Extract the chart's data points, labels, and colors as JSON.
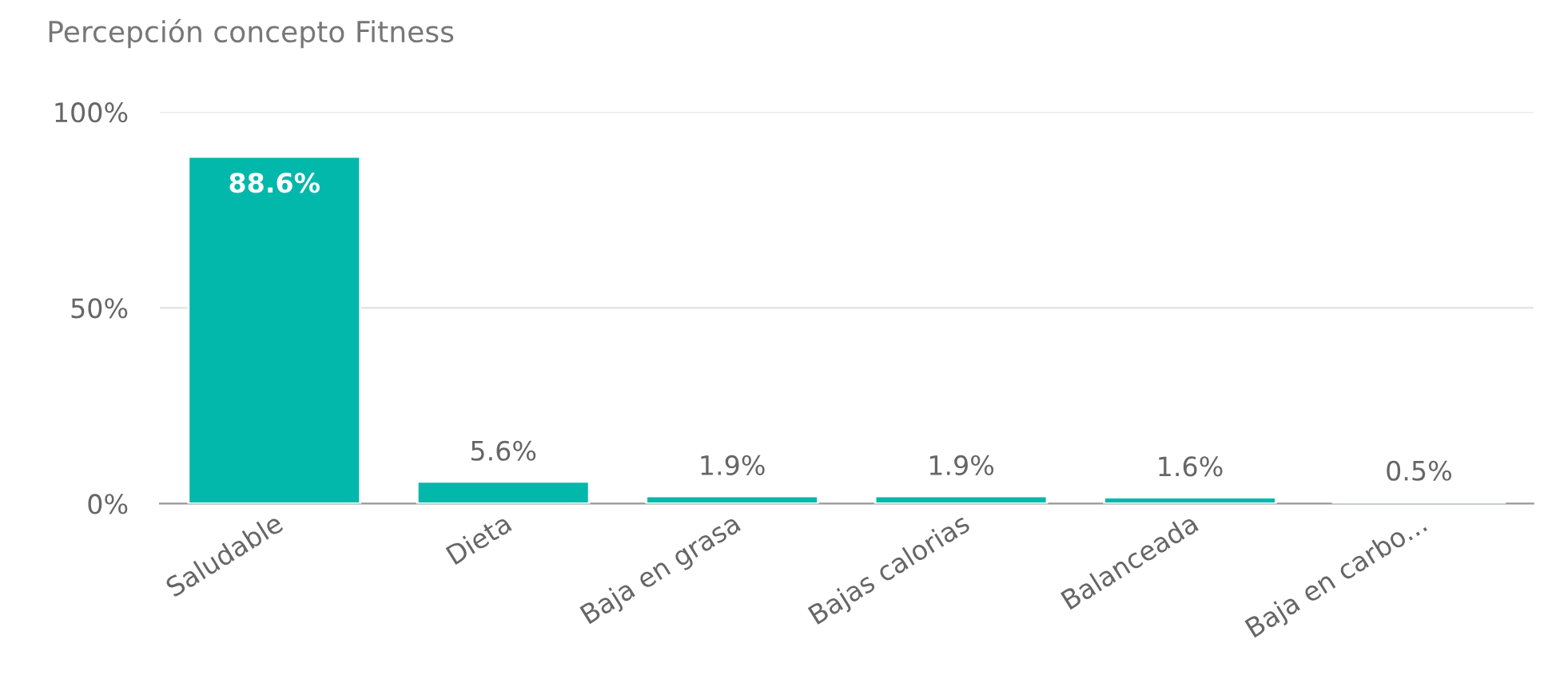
{
  "chart_data": {
    "type": "bar",
    "title": "Percepción concepto Fitness",
    "categories": [
      "Saludable",
      "Dieta",
      "Baja en grasa",
      "Bajas calorias",
      "Balanceada",
      "Baja en carbo..."
    ],
    "values": [
      88.6,
      5.6,
      1.9,
      1.9,
      1.6,
      0.5
    ],
    "value_labels": [
      "88.6%",
      "5.6%",
      "1.9%",
      "1.9%",
      "1.6%",
      "0.5%"
    ],
    "color": "#01b8aa",
    "ylim": [
      0,
      100
    ],
    "yticks": [
      {
        "value": 0,
        "label": "0%"
      },
      {
        "value": 50,
        "label": "50%"
      },
      {
        "value": 100,
        "label": "100%"
      }
    ],
    "grid": "y"
  }
}
